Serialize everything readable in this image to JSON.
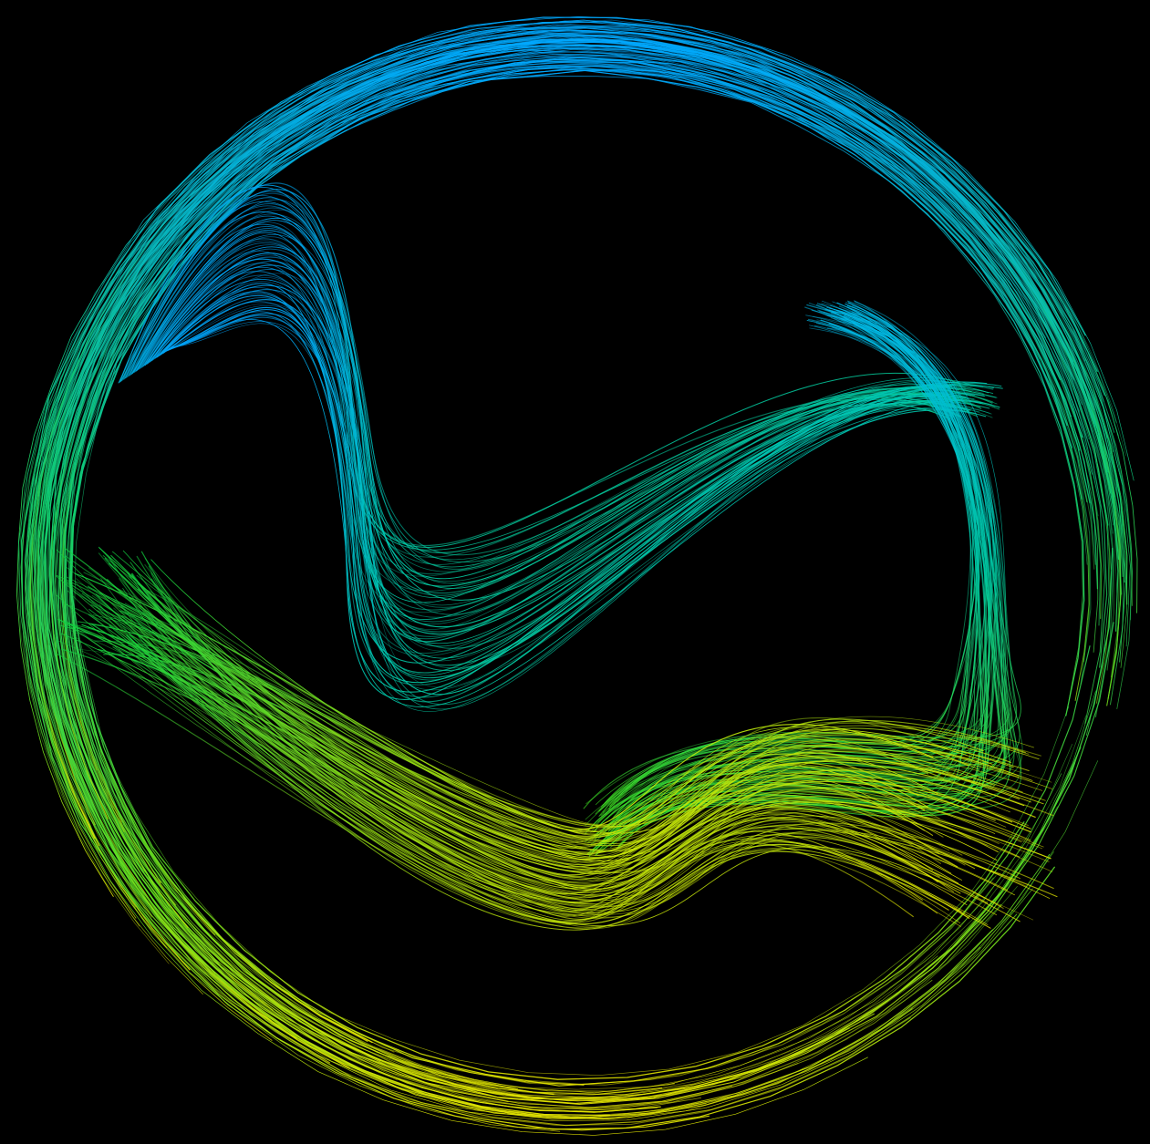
{
  "artwork": {
    "subject": "flow-field-curves",
    "background_color": "#000000",
    "palette": [
      "#00a8ff",
      "#00c8d8",
      "#00d070",
      "#20e020",
      "#a8e010",
      "#e8e800"
    ],
    "bands": [
      {
        "name": "outer-ring-sweep",
        "color_stops": [
          "#00b0ff",
          "#00d060",
          "#e0e000"
        ]
      },
      {
        "name": "upper-fold",
        "color_stops": [
          "#00a0ff",
          "#00c8c0",
          "#10d060"
        ]
      },
      {
        "name": "right-fold",
        "color_stops": [
          "#00b8e0",
          "#20d040",
          "#60e020"
        ]
      },
      {
        "name": "lower-sweep",
        "color_stops": [
          "#20d020",
          "#c0e010",
          "#f0f000"
        ]
      }
    ]
  }
}
